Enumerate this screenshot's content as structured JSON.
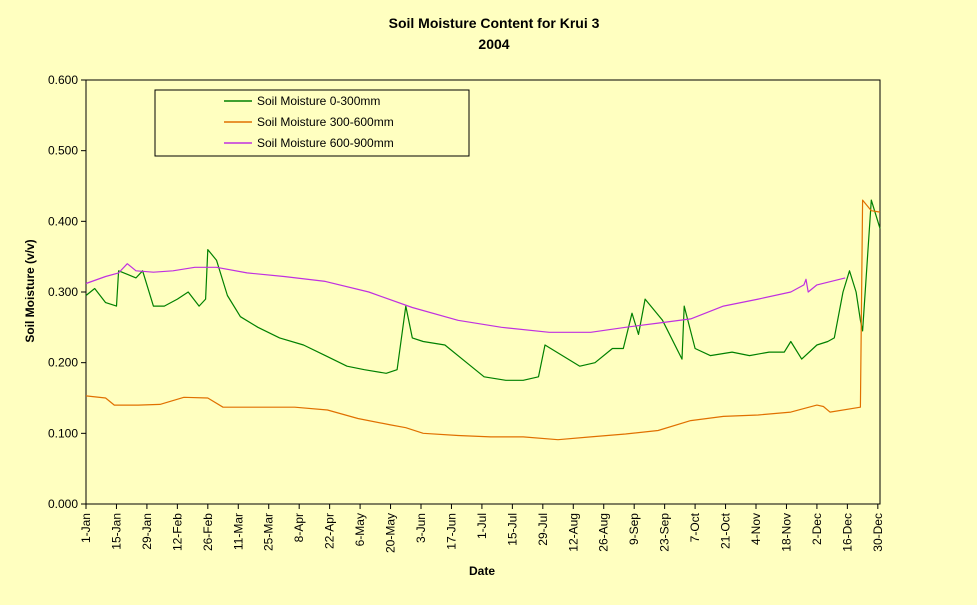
{
  "chart_data": {
    "type": "line",
    "title": "Soil Moisture Content for Krui 3",
    "subtitle": "2004",
    "xlabel": "Date",
    "ylabel": "Soil Moisture (v/v)",
    "ylim": [
      0,
      0.6
    ],
    "yticks": [
      "0.000",
      "0.100",
      "0.200",
      "0.300",
      "0.400",
      "0.500",
      "0.600"
    ],
    "xlim": [
      "2004-01-01",
      "2004-12-31"
    ],
    "xticks": [
      "1-Jan",
      "15-Jan",
      "29-Jan",
      "12-Feb",
      "26-Feb",
      "11-Mar",
      "25-Mar",
      "8-Apr",
      "22-Apr",
      "6-May",
      "20-May",
      "3-Jun",
      "17-Jun",
      "1-Jul",
      "15-Jul",
      "29-Jul",
      "12-Aug",
      "26-Aug",
      "9-Sep",
      "23-Sep",
      "7-Oct",
      "21-Oct",
      "4-Nov",
      "18-Nov",
      "2-Dec",
      "16-Dec",
      "30-Dec"
    ],
    "grid": false,
    "legend_position": "top-left",
    "plot_background": "#ffffc0",
    "series": [
      {
        "name": "Soil Moisture 0-300mm",
        "color": "#008000",
        "x": [
          "2004-01-01",
          "2004-01-05",
          "2004-01-10",
          "2004-01-15",
          "2004-01-16",
          "2004-01-20",
          "2004-01-24",
          "2004-01-27",
          "2004-02-01",
          "2004-02-06",
          "2004-02-12",
          "2004-02-17",
          "2004-02-22",
          "2004-02-25",
          "2004-02-26",
          "2004-03-01",
          "2004-03-06",
          "2004-03-12",
          "2004-03-20",
          "2004-03-30",
          "2004-04-10",
          "2004-04-20",
          "2004-04-30",
          "2004-05-08",
          "2004-05-18",
          "2004-05-23",
          "2004-05-27",
          "2004-05-30",
          "2004-06-04",
          "2004-06-14",
          "2004-06-24",
          "2004-07-02",
          "2004-07-12",
          "2004-07-20",
          "2004-07-27",
          "2004-07-30",
          "2004-08-07",
          "2004-08-15",
          "2004-08-22",
          "2004-08-30",
          "2004-09-04",
          "2004-09-08",
          "2004-09-11",
          "2004-09-14",
          "2004-09-22",
          "2004-10-01",
          "2004-10-02",
          "2004-10-07",
          "2004-10-14",
          "2004-10-24",
          "2004-11-01",
          "2004-11-10",
          "2004-11-17",
          "2004-11-20",
          "2004-11-25",
          "2004-12-02",
          "2004-12-07",
          "2004-12-10",
          "2004-12-14",
          "2004-12-17",
          "2004-12-20",
          "2004-12-22",
          "2004-12-23",
          "2004-12-27",
          "2004-12-31"
        ],
        "y": [
          0.295,
          0.305,
          0.285,
          0.28,
          0.33,
          0.325,
          0.32,
          0.33,
          0.28,
          0.28,
          0.29,
          0.3,
          0.28,
          0.29,
          0.36,
          0.345,
          0.295,
          0.265,
          0.25,
          0.235,
          0.225,
          0.21,
          0.195,
          0.19,
          0.185,
          0.19,
          0.28,
          0.235,
          0.23,
          0.225,
          0.2,
          0.18,
          0.175,
          0.175,
          0.18,
          0.225,
          0.21,
          0.195,
          0.2,
          0.22,
          0.22,
          0.27,
          0.24,
          0.29,
          0.26,
          0.205,
          0.28,
          0.22,
          0.21,
          0.215,
          0.21,
          0.215,
          0.215,
          0.23,
          0.205,
          0.225,
          0.23,
          0.235,
          0.3,
          0.33,
          0.3,
          0.26,
          0.245,
          0.43,
          0.39
        ]
      },
      {
        "name": "Soil Moisture 300-600mm",
        "color": "#e07000",
        "x": [
          "2004-01-01",
          "2004-01-10",
          "2004-01-14",
          "2004-01-18",
          "2004-01-25",
          "2004-02-04",
          "2004-02-15",
          "2004-02-26",
          "2004-03-04",
          "2004-03-20",
          "2004-04-06",
          "2004-04-21",
          "2004-05-05",
          "2004-05-20",
          "2004-05-27",
          "2004-06-04",
          "2004-06-20",
          "2004-07-05",
          "2004-07-20",
          "2004-08-05",
          "2004-08-20",
          "2004-09-05",
          "2004-09-20",
          "2004-10-05",
          "2004-10-20",
          "2004-11-05",
          "2004-11-20",
          "2004-12-02",
          "2004-12-05",
          "2004-12-08",
          "2004-12-22",
          "2004-12-23",
          "2004-12-27",
          "2004-12-31"
        ],
        "y": [
          0.153,
          0.15,
          0.14,
          0.14,
          0.14,
          0.141,
          0.151,
          0.15,
          0.137,
          0.137,
          0.137,
          0.133,
          0.121,
          0.112,
          0.108,
          0.1,
          0.097,
          0.095,
          0.095,
          0.091,
          0.095,
          0.099,
          0.104,
          0.118,
          0.124,
          0.126,
          0.13,
          0.14,
          0.138,
          0.13,
          0.137,
          0.43,
          0.415,
          0.413
        ]
      },
      {
        "name": "Soil Moisture 600-900mm",
        "color": "#c030e0",
        "x": [
          "2004-01-01",
          "2004-01-10",
          "2004-01-16",
          "2004-01-20",
          "2004-01-24",
          "2004-02-01",
          "2004-02-10",
          "2004-02-20",
          "2004-03-01",
          "2004-03-15",
          "2004-04-01",
          "2004-04-20",
          "2004-05-10",
          "2004-05-30",
          "2004-06-20",
          "2004-07-10",
          "2004-08-01",
          "2004-08-20",
          "2004-09-05",
          "2004-09-20",
          "2004-10-05",
          "2004-10-20",
          "2004-11-05",
          "2004-11-20",
          "2004-11-26",
          "2004-11-27",
          "2004-11-28",
          "2004-12-02",
          "2004-12-15"
        ],
        "y": [
          0.312,
          0.322,
          0.327,
          0.34,
          0.33,
          0.328,
          0.33,
          0.335,
          0.335,
          0.327,
          0.322,
          0.315,
          0.3,
          0.278,
          0.26,
          0.25,
          0.243,
          0.243,
          0.25,
          0.256,
          0.262,
          0.28,
          0.29,
          0.3,
          0.31,
          0.318,
          0.3,
          0.31,
          0.32
        ]
      }
    ]
  }
}
